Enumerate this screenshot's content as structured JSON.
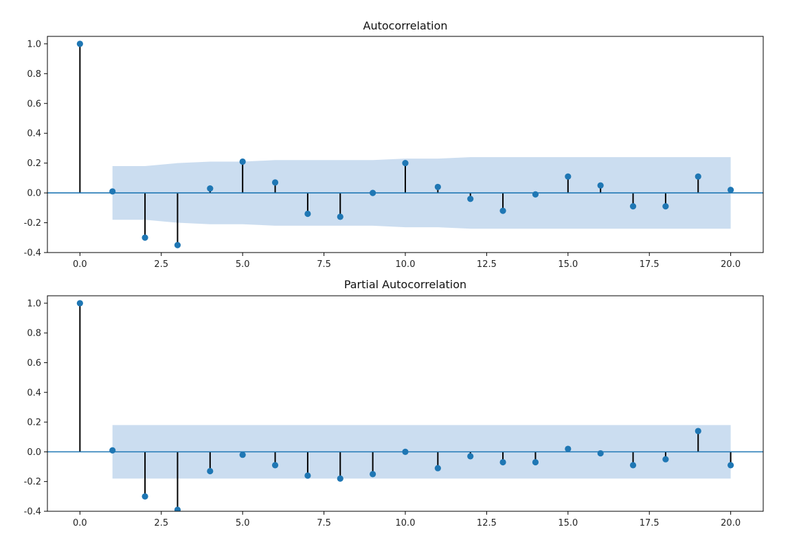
{
  "chart_data": [
    {
      "type": "stem",
      "title": "Autocorrelation",
      "xlim": [
        -1,
        21
      ],
      "ylim": [
        -0.4,
        1.05
      ],
      "xticks": [
        0,
        2.5,
        5,
        7.5,
        10,
        12.5,
        15,
        17.5,
        20
      ],
      "xtick_labels": [
        "0.0",
        "2.5",
        "5.0",
        "7.5",
        "10.0",
        "12.5",
        "15.0",
        "17.5",
        "20.0"
      ],
      "yticks": [
        -0.4,
        -0.2,
        0,
        0.2,
        0.4,
        0.6,
        0.8,
        1.0
      ],
      "ytick_labels": [
        "-0.4",
        "-0.2",
        "0.0",
        "0.2",
        "0.4",
        "0.6",
        "0.8",
        "1.0"
      ],
      "x": [
        0,
        1,
        2,
        3,
        4,
        5,
        6,
        7,
        8,
        9,
        10,
        11,
        12,
        13,
        14,
        15,
        16,
        17,
        18,
        19,
        20
      ],
      "values": [
        1.0,
        0.01,
        -0.3,
        -0.35,
        0.03,
        0.21,
        0.07,
        -0.14,
        -0.16,
        0.0,
        0.2,
        0.04,
        -0.04,
        -0.12,
        -0.01,
        0.11,
        0.05,
        -0.09,
        -0.09,
        0.11,
        0.02
      ],
      "confint_x": [
        1,
        2,
        3,
        4,
        5,
        6,
        7,
        8,
        9,
        10,
        11,
        12,
        13,
        14,
        15,
        16,
        17,
        18,
        19,
        20
      ],
      "confint": [
        0.18,
        0.18,
        0.2,
        0.21,
        0.21,
        0.22,
        0.22,
        0.22,
        0.22,
        0.23,
        0.23,
        0.24,
        0.24,
        0.24,
        0.24,
        0.24,
        0.24,
        0.24,
        0.24,
        0.24
      ],
      "grid": false,
      "colors": {
        "marker": "#1f77b4",
        "stem": "#000000",
        "band": "#c5d9ee",
        "baseline": "#1f77b4"
      }
    },
    {
      "type": "stem",
      "title": "Partial Autocorrelation",
      "xlim": [
        -1,
        21
      ],
      "ylim": [
        -0.4,
        1.05
      ],
      "xticks": [
        0,
        2.5,
        5,
        7.5,
        10,
        12.5,
        15,
        17.5,
        20
      ],
      "xtick_labels": [
        "0.0",
        "2.5",
        "5.0",
        "7.5",
        "10.0",
        "12.5",
        "15.0",
        "17.5",
        "20.0"
      ],
      "yticks": [
        -0.4,
        -0.2,
        0,
        0.2,
        0.4,
        0.6,
        0.8,
        1.0
      ],
      "ytick_labels": [
        "-0.4",
        "-0.2",
        "0.0",
        "0.2",
        "0.4",
        "0.6",
        "0.8",
        "1.0"
      ],
      "x": [
        0,
        1,
        2,
        3,
        4,
        5,
        6,
        7,
        8,
        9,
        10,
        11,
        12,
        13,
        14,
        15,
        16,
        17,
        18,
        19,
        20
      ],
      "values": [
        1.0,
        0.01,
        -0.3,
        -0.39,
        -0.13,
        -0.02,
        -0.09,
        -0.16,
        -0.18,
        -0.15,
        0.0,
        -0.11,
        -0.03,
        -0.07,
        -0.07,
        0.02,
        -0.01,
        -0.09,
        -0.05,
        0.14,
        -0.09
      ],
      "confint_x": [
        1,
        20
      ],
      "confint": [
        0.18,
        0.18
      ],
      "grid": false,
      "colors": {
        "marker": "#1f77b4",
        "stem": "#000000",
        "band": "#c5d9ee",
        "baseline": "#1f77b4"
      }
    }
  ]
}
